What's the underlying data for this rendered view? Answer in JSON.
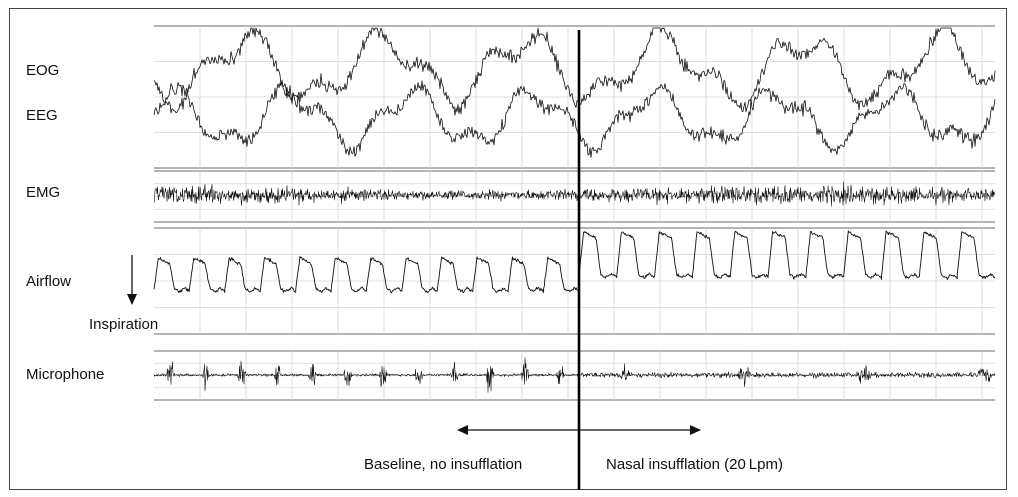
{
  "chart_data": {
    "type": "line",
    "title": "",
    "xlabel": "",
    "ylabel": "",
    "grid": true,
    "legend": "none",
    "channels": [
      {
        "name": "EOG"
      },
      {
        "name": "EEG"
      },
      {
        "name": "EMG"
      },
      {
        "name": "Airflow",
        "annotation": "Inspiration"
      },
      {
        "name": "Microphone"
      }
    ],
    "airflow_breaths": {
      "baseline_count": 12,
      "insufflation_count": 11
    },
    "periods": [
      {
        "label": "Baseline, no insufflation"
      },
      {
        "label": "Nasal insufflation (20 Lpm)"
      }
    ]
  },
  "colors": {
    "trace": "#111111",
    "grid": "#d6d6d6",
    "divider": "#000000"
  }
}
